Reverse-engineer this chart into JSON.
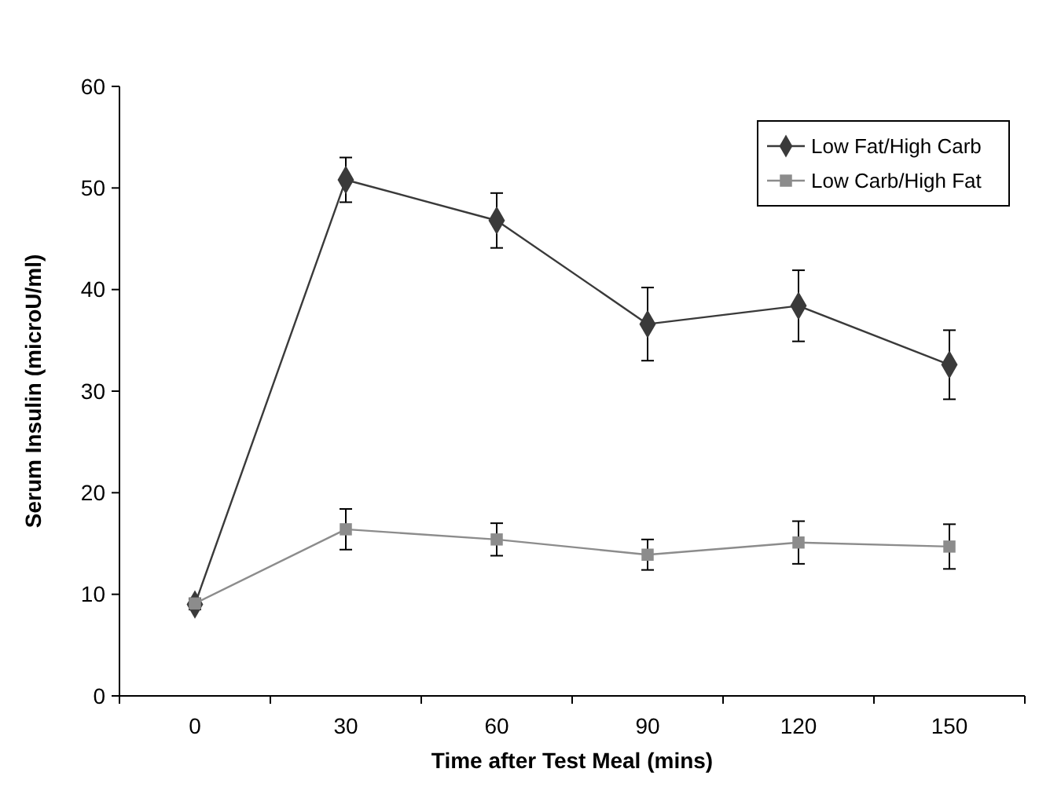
{
  "chart_data": {
    "type": "line",
    "xlabel": "Time after Test Meal (mins)",
    "ylabel": "Serum Insulin (microU/ml)",
    "categories": [
      "0",
      "30",
      "60",
      "90",
      "120",
      "150"
    ],
    "ylim": [
      0,
      60
    ],
    "yticks": [
      0,
      10,
      20,
      30,
      40,
      50,
      60
    ],
    "grid": false,
    "legend": "top right",
    "series": [
      {
        "name": "Low Fat/High Carb",
        "color": "#3a3a3a",
        "marker": "diamond",
        "values": [
          9,
          50.8,
          46.8,
          36.6,
          38.4,
          32.6
        ],
        "errors": [
          0.5,
          2.2,
          2.7,
          3.6,
          3.5,
          3.4
        ]
      },
      {
        "name": "Low Carb/High Fat",
        "color": "#8c8c8c",
        "marker": "square",
        "values": [
          9.1,
          16.4,
          15.4,
          13.9,
          15.1,
          14.7
        ],
        "errors": [
          0.5,
          2,
          1.6,
          1.5,
          2.1,
          2.2
        ]
      }
    ]
  }
}
